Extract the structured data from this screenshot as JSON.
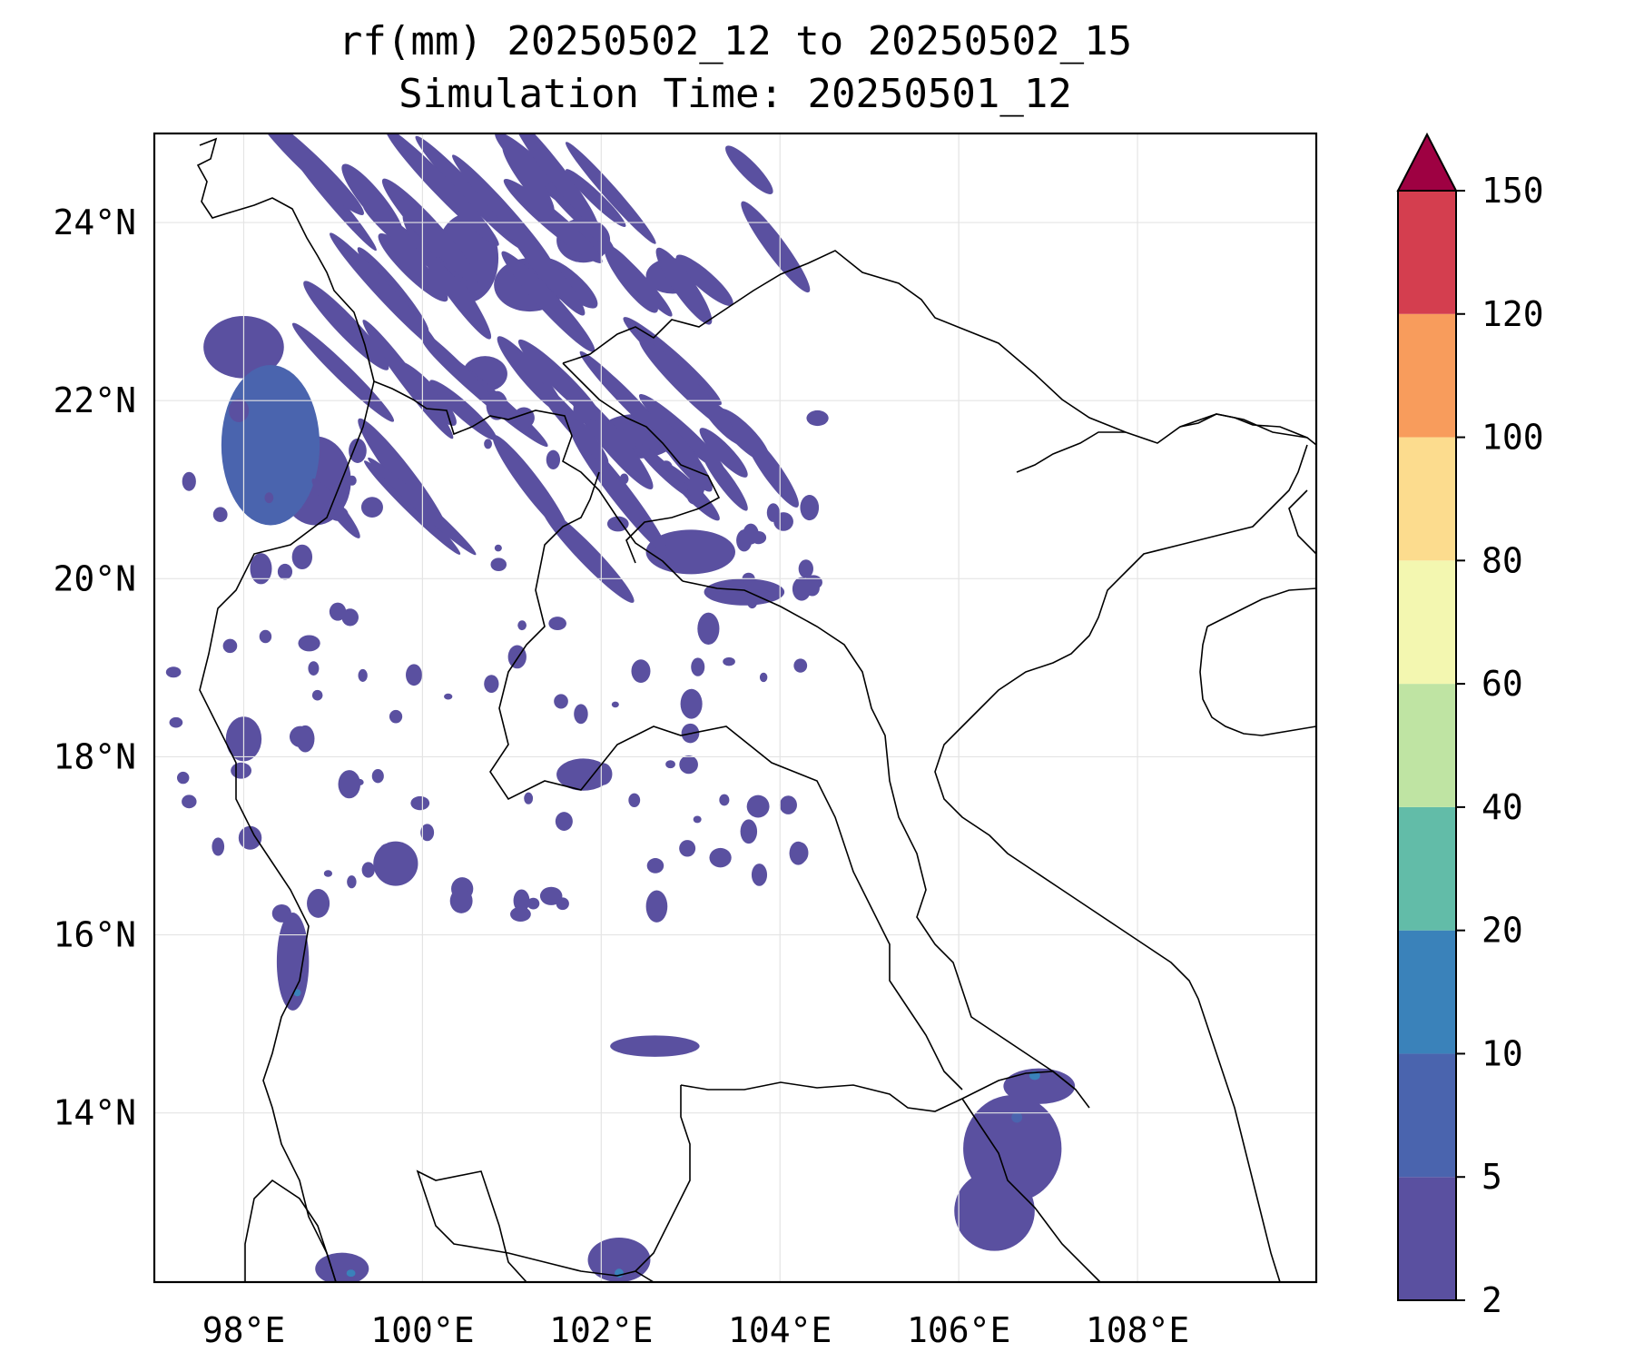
{
  "title": {
    "line1": "rf(mm) 20250502_12 to 20250502_15",
    "line2": "Simulation Time: 20250501_12"
  },
  "map": {
    "projection": "PlateCarree",
    "lon_range": [
      97.0,
      110.0
    ],
    "lat_range": [
      12.1,
      25.0
    ],
    "gridlines": true,
    "lon_ticks": [
      {
        "value": 98,
        "label": "98°E"
      },
      {
        "value": 100,
        "label": "100°E"
      },
      {
        "value": 102,
        "label": "102°E"
      },
      {
        "value": 104,
        "label": "104°E"
      },
      {
        "value": 106,
        "label": "106°E"
      },
      {
        "value": 108,
        "label": "108°E"
      }
    ],
    "lat_ticks": [
      {
        "value": 24,
        "label": "24°N"
      },
      {
        "value": 22,
        "label": "22°N"
      },
      {
        "value": 20,
        "label": "20°N"
      },
      {
        "value": 18,
        "label": "18°N"
      },
      {
        "value": 16,
        "label": "16°N"
      },
      {
        "value": 14,
        "label": "14°N"
      }
    ]
  },
  "colorbar": {
    "levels": [
      2,
      5,
      10,
      20,
      40,
      60,
      80,
      100,
      120,
      150
    ],
    "colors": [
      "#5a50a0",
      "#4a64ae",
      "#3a82ba",
      "#62bca8",
      "#bfe4a3",
      "#f3f7b0",
      "#fcdc8e",
      "#f89c5c",
      "#d43e4f",
      "#9e0142"
    ],
    "extend": "max"
  },
  "rain_areas": [
    {
      "lon": 98.3,
      "lat": 21.5,
      "rx": 0.55,
      "ry": 0.9,
      "level": 5
    },
    {
      "lon": 98.0,
      "lat": 22.6,
      "rx": 0.45,
      "ry": 0.35,
      "level": 2
    },
    {
      "lon": 98.8,
      "lat": 21.1,
      "rx": 0.4,
      "ry": 0.5,
      "level": 2
    },
    {
      "lon": 100.5,
      "lat": 23.6,
      "rx": 0.35,
      "ry": 0.5,
      "level": 2
    },
    {
      "lon": 101.2,
      "lat": 23.3,
      "rx": 0.4,
      "ry": 0.3,
      "level": 2
    },
    {
      "lon": 101.8,
      "lat": 23.8,
      "rx": 0.3,
      "ry": 0.25,
      "level": 2
    },
    {
      "lon": 102.8,
      "lat": 23.4,
      "rx": 0.3,
      "ry": 0.2,
      "level": 2
    },
    {
      "lon": 100.7,
      "lat": 22.3,
      "rx": 0.25,
      "ry": 0.2,
      "level": 2
    },
    {
      "lon": 98.55,
      "lat": 15.7,
      "rx": 0.18,
      "ry": 0.55,
      "level": 2
    },
    {
      "lon": 98.6,
      "lat": 15.35,
      "rx": 0.04,
      "ry": 0.04,
      "level": 10
    },
    {
      "lon": 106.6,
      "lat": 13.6,
      "rx": 0.55,
      "ry": 0.6,
      "level": 2
    },
    {
      "lon": 106.4,
      "lat": 12.9,
      "rx": 0.45,
      "ry": 0.45,
      "level": 2
    },
    {
      "lon": 106.9,
      "lat": 14.3,
      "rx": 0.4,
      "ry": 0.2,
      "level": 2
    },
    {
      "lon": 106.85,
      "lat": 14.42,
      "rx": 0.06,
      "ry": 0.05,
      "level": 10
    },
    {
      "lon": 106.65,
      "lat": 13.95,
      "rx": 0.06,
      "ry": 0.06,
      "level": 5
    },
    {
      "lon": 102.2,
      "lat": 12.35,
      "rx": 0.35,
      "ry": 0.25,
      "level": 2
    },
    {
      "lon": 102.2,
      "lat": 12.2,
      "rx": 0.05,
      "ry": 0.05,
      "level": 10
    },
    {
      "lon": 102.6,
      "lat": 14.75,
      "rx": 0.5,
      "ry": 0.12,
      "level": 2
    },
    {
      "lon": 99.1,
      "lat": 12.25,
      "rx": 0.3,
      "ry": 0.18,
      "level": 2
    },
    {
      "lon": 99.2,
      "lat": 12.2,
      "rx": 0.05,
      "ry": 0.04,
      "level": 10
    },
    {
      "lon": 103.0,
      "lat": 20.3,
      "rx": 0.5,
      "ry": 0.25,
      "level": 2
    },
    {
      "lon": 103.6,
      "lat": 19.85,
      "rx": 0.45,
      "ry": 0.15,
      "level": 2
    },
    {
      "lon": 102.4,
      "lat": 21.6,
      "rx": 0.45,
      "ry": 0.25,
      "level": 2
    },
    {
      "lon": 99.7,
      "lat": 16.8,
      "rx": 0.25,
      "ry": 0.25,
      "level": 2
    },
    {
      "lon": 101.8,
      "lat": 17.8,
      "rx": 0.3,
      "ry": 0.18,
      "level": 2
    },
    {
      "lon": 98.0,
      "lat": 18.2,
      "rx": 0.2,
      "ry": 0.25,
      "level": 2
    }
  ],
  "rain_bands": {
    "level": 2,
    "count": 60,
    "lon_range": [
      98.5,
      104.0
    ],
    "lat_range": [
      20.2,
      24.7
    ]
  },
  "scattered_cells": {
    "level": 2,
    "count": 110,
    "lon_range": [
      97.2,
      104.5
    ],
    "lat_range": [
      16.2,
      22.0
    ]
  }
}
